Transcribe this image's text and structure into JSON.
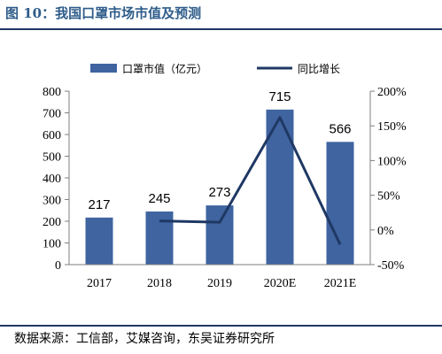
{
  "header": {
    "title": "图 10：我国口罩市场市值及预测"
  },
  "footer": {
    "source": "数据来源：工信部，艾媒咨询，东吴证券研究所"
  },
  "colors": {
    "bar": "#3f64a0",
    "line": "#1f3864",
    "rule": "#1f3864"
  },
  "chart_data": {
    "type": "bar",
    "categories": [
      "2017",
      "2018",
      "2019",
      "2020E",
      "2021E"
    ],
    "series": [
      {
        "name": "口罩市值（亿元）",
        "type": "bar",
        "axis": "left",
        "values": [
          217,
          245,
          273,
          715,
          566
        ]
      },
      {
        "name": "同比增长",
        "type": "line",
        "axis": "right",
        "values": [
          null,
          13,
          11,
          162,
          -21
        ]
      }
    ],
    "data_labels": [
      "217",
      "245",
      "273",
      "715",
      "566"
    ],
    "y_left": {
      "min": 0,
      "max": 800,
      "ticks": [
        "0",
        "100",
        "200",
        "300",
        "400",
        "500",
        "600",
        "700",
        "800"
      ]
    },
    "y_right": {
      "min": -50,
      "max": 200,
      "ticks": [
        "-50%",
        "0%",
        "50%",
        "100%",
        "150%",
        "200%"
      ]
    },
    "legend": {
      "position": "top"
    },
    "grid": false
  }
}
